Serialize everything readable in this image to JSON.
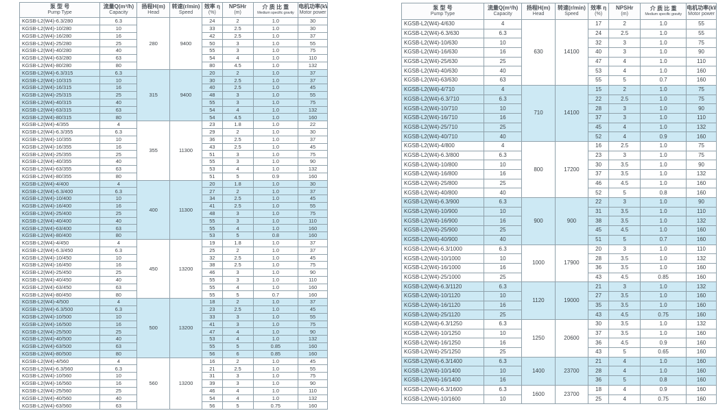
{
  "header": {
    "pump_type_zh": "泵 型 号",
    "pump_type_en": "Pump Type",
    "capacity_zh": "流量Q(m³/h)",
    "capacity_en": "Capacity",
    "head_zh": "扬程H(m)",
    "head_en": "Head",
    "speed_zh": "转速(r/min)",
    "speed_en": "Speed",
    "eff_zh": "效率 η",
    "eff_en": "(%)",
    "npshr_zh": "NPSHr",
    "npshr_en": "(m)",
    "gravity_zh": "介 质 比 重",
    "gravity_en": "Medium specific gravity",
    "power_zh": "电机功率(kW)",
    "power_en": "Motor power"
  },
  "colors": {
    "highlight": "#cde9f4",
    "border": "#8fa0aa",
    "text": "#3c4146"
  },
  "row_columns": [
    "model",
    "capacity",
    "efficiency",
    "npshr",
    "gravity",
    "power"
  ],
  "tables": [
    {
      "groups": [
        {
          "head": "280",
          "speed": "9400",
          "highlight": false,
          "rows": [
            [
              "KGSB-L2(W4)-6.3/280",
              "6.3",
              "24",
              "2",
              "1.0",
              "30"
            ],
            [
              "KGSB-L2(W4)-10/280",
              "10",
              "33",
              "2.5",
              "1.0",
              "30"
            ],
            [
              "KGSB-L2(W4)-16/280",
              "16",
              "42",
              "2.5",
              "1.0",
              "37"
            ],
            [
              "KGSB-L2(W4)-25/280",
              "25",
              "50",
              "3",
              "1.0",
              "55"
            ],
            [
              "KGSB-L2(W4)-40/280",
              "40",
              "55",
              "3",
              "1.0",
              "75"
            ],
            [
              "KGSB-L2(W4)-63/280",
              "63",
              "54",
              "4",
              "1.0",
              "110"
            ],
            [
              "KGSB-L2(W4)-80/280",
              "80",
              "80",
              "4.5",
              "1.0",
              "132"
            ]
          ]
        },
        {
          "head": "315",
          "speed": "9400",
          "highlight": true,
          "rows": [
            [
              "KGSB-L2(W4)-6.3/315",
              "6.3",
              "20",
              "2",
              "1.0",
              "37"
            ],
            [
              "KGSB-L2(W4)-10/315",
              "10",
              "30",
              "2.5",
              "1.0",
              "37"
            ],
            [
              "KGSB-L2(W4)-16/315",
              "16",
              "40",
              "2.5",
              "1.0",
              "45"
            ],
            [
              "KGSB-L2(W4)-25/315",
              "25",
              "48",
              "3",
              "1.0",
              "55"
            ],
            [
              "KGSB-L2(W4)-40/315",
              "40",
              "55",
              "3",
              "1.0",
              "75"
            ],
            [
              "KGSB-L2(W4)-63/315",
              "63",
              "54",
              "4",
              "1.0",
              "132"
            ],
            [
              "KGSB-L2(W4)-80/315",
              "80",
              "54",
              "4.5",
              "1.0",
              "160"
            ]
          ]
        },
        {
          "head": "355",
          "speed": "11300",
          "highlight": false,
          "rows": [
            [
              "KGSB-L2(W4)-4/355",
              "4",
              "23",
              "1.8",
              "1.0",
              "22"
            ],
            [
              "KGSB-L2(W4)-6.3/355",
              "6.3",
              "29",
              "2",
              "1.0",
              "30"
            ],
            [
              "KGSB-L2(W4)-10/355",
              "10",
              "36",
              "2.5",
              "1.0",
              "37"
            ],
            [
              "KGSB-L2(W4)-16/355",
              "16",
              "43",
              "2.5",
              "1.0",
              "45"
            ],
            [
              "KGSB-L2(W4)-25/355",
              "25",
              "51",
              "3",
              "1.0",
              "75"
            ],
            [
              "KGSB-L2(W4)-40/355",
              "40",
              "55",
              "3",
              "1.0",
              "90"
            ],
            [
              "KGSB-L2(W4)-63/355",
              "63",
              "53",
              "4",
              "1.0",
              "132"
            ],
            [
              "KGSB-L2(W4)-80/355",
              "80",
              "51",
              "5",
              "0.9",
              "160"
            ]
          ]
        },
        {
          "head": "400",
          "speed": "11300",
          "highlight": true,
          "rows": [
            [
              "KGSB-L2(W4)-4/400",
              "4",
              "20",
              "1.8",
              "1.0",
              "30"
            ],
            [
              "KGSB-L2(W4)-6.3/400",
              "6.3",
              "27",
              "2",
              "1.0",
              "37"
            ],
            [
              "KGSB-L2(W4)-10/400",
              "10",
              "34",
              "2.5",
              "1.0",
              "45"
            ],
            [
              "KGSB-L2(W4)-16/400",
              "16",
              "41",
              "2.5",
              "1.0",
              "55"
            ],
            [
              "KGSB-L2(W4)-25/400",
              "25",
              "48",
              "3",
              "1.0",
              "75"
            ],
            [
              "KGSB-L2(W4)-40/400",
              "40",
              "55",
              "3",
              "1.0",
              "110"
            ],
            [
              "KGSB-L2(W4)-63/400",
              "63",
              "55",
              "4",
              "1.0",
              "160"
            ],
            [
              "KGSB-L2(W4)-80/400",
              "80",
              "53",
              "5",
              "0.8",
              "160"
            ]
          ]
        },
        {
          "head": "450",
          "speed": "13200",
          "highlight": false,
          "rows": [
            [
              "KGSB-L2(W4)-4/450",
              "4",
              "19",
              "1.8",
              "1.0",
              "37"
            ],
            [
              "KGSB-L2(W4)-6.3/450",
              "6.3",
              "25",
              "2",
              "1.0",
              "37"
            ],
            [
              "KGSB-L2(W4)-10/450",
              "10",
              "32",
              "2.5",
              "1.0",
              "45"
            ],
            [
              "KGSB-L2(W4)-16/450",
              "16",
              "38",
              "2.5",
              "1.0",
              "75"
            ],
            [
              "KGSB-L2(W4)-25/450",
              "25",
              "46",
              "3",
              "1.0",
              "90"
            ],
            [
              "KGSB-L2(W4)-40/450",
              "40",
              "55",
              "3",
              "1.0",
              "110"
            ],
            [
              "KGSB-L2(W4)-63/450",
              "63",
              "55",
              "4",
              "1.0",
              "160"
            ],
            [
              "KGSB-L2(W4)-80/450",
              "80",
              "55",
              "5",
              "0.7",
              "160"
            ]
          ]
        },
        {
          "head": "500",
          "speed": "13200",
          "highlight": true,
          "rows": [
            [
              "KGSB-L2(W4)-4/500",
              "4",
              "18",
              "2",
              "1.0",
              "37"
            ],
            [
              "KGSB-L2(W4)-6.3/500",
              "6.3",
              "23",
              "2.5",
              "1.0",
              "45"
            ],
            [
              "KGSB-L2(W4)-10/500",
              "10",
              "33",
              "3",
              "1.0",
              "55"
            ],
            [
              "KGSB-L2(W4)-16/500",
              "16",
              "41",
              "3",
              "1.0",
              "75"
            ],
            [
              "KGSB-L2(W4)-25/500",
              "25",
              "47",
              "4",
              "1.0",
              "90"
            ],
            [
              "KGSB-L2(W4)-40/500",
              "40",
              "53",
              "4",
              "1.0",
              "132"
            ],
            [
              "KGSB-L2(W4)-63/500",
              "63",
              "55",
              "5",
              "0.85",
              "160"
            ],
            [
              "KGSB-L2(W4)-80/500",
              "80",
              "56",
              "6",
              "0.85",
              "160"
            ]
          ]
        },
        {
          "head": "560",
          "speed": "13200",
          "highlight": false,
          "rows": [
            [
              "KGSB-L2(W4)-4/560",
              "4",
              "16",
              "2",
              "1.0",
              "45"
            ],
            [
              "KGSB-L2(W4)-6.3/560",
              "6.3",
              "21",
              "2.5",
              "1.0",
              "55"
            ],
            [
              "KGSB-L2(W4)-10/560",
              "10",
              "31",
              "3",
              "1.0",
              "75"
            ],
            [
              "KGSB-L2(W4)-16/560",
              "16",
              "39",
              "3",
              "1.0",
              "90"
            ],
            [
              "KGSB-L2(W4)-25/560",
              "25",
              "46",
              "4",
              "1.0",
              "110"
            ],
            [
              "KGSB-L2(W4)-40/560",
              "40",
              "54",
              "4",
              "1.0",
              "132"
            ],
            [
              "KGSB-L2(W4)-63/560",
              "63",
              "56",
              "5",
              "0.75",
              "160"
            ]
          ]
        }
      ]
    },
    {
      "groups": [
        {
          "head": "630",
          "speed": "14100",
          "highlight": false,
          "rows": [
            [
              "KGSB-L2(W4)-4/630",
              "4",
              "17",
              "2",
              "1.0",
              "55"
            ],
            [
              "KGSB-L2(W4)-6.3/630",
              "6.3",
              "24",
              "2.5",
              "1.0",
              "55"
            ],
            [
              "KGSB-L2(W4)-10/630",
              "10",
              "32",
              "3",
              "1.0",
              "75"
            ],
            [
              "KGSB-L2(W4)-16/630",
              "16",
              "40",
              "3",
              "1.0",
              "90"
            ],
            [
              "KGSB-L2(W4)-25/630",
              "25",
              "47",
              "4",
              "1.0",
              "110"
            ],
            [
              "KGSB-L2(W4)-40/630",
              "40",
              "53",
              "4",
              "1.0",
              "160"
            ],
            [
              "KGSB-L2(W4)-63/630",
              "63",
              "55",
              "5",
              "0.7",
              "160"
            ]
          ]
        },
        {
          "head": "710",
          "speed": "14100",
          "highlight": true,
          "rows": [
            [
              "KGSB-L2(W4)-4/710",
              "4",
              "15",
              "2",
              "1.0",
              "75"
            ],
            [
              "KGSB-L2(W4)-6.3/710",
              "6.3",
              "22",
              "2.5",
              "1.0",
              "75"
            ],
            [
              "KGSB-L2(W4)-10/710",
              "10",
              "28",
              "3",
              "1.0",
              "90"
            ],
            [
              "KGSB-L2(W4)-16/710",
              "16",
              "37",
              "3",
              "1.0",
              "110"
            ],
            [
              "KGSB-L2(W4)-25/710",
              "25",
              "45",
              "4",
              "1.0",
              "132"
            ],
            [
              "KGSB-L2(W4)-40/710",
              "40",
              "52",
              "4",
              "0.9",
              "160"
            ]
          ]
        },
        {
          "head": "800",
          "speed": "17200",
          "highlight": false,
          "rows": [
            [
              "KGSB-L2(W4)-4/800",
              "4",
              "16",
              "2.5",
              "1.0",
              "75"
            ],
            [
              "KGSB-L2(W4)-6.3/800",
              "6.3",
              "23",
              "3",
              "1.0",
              "75"
            ],
            [
              "KGSB-L2(W4)-10/800",
              "10",
              "30",
              "3.5",
              "1.0",
              "90"
            ],
            [
              "KGSB-L2(W4)-16/800",
              "16",
              "37",
              "3.5",
              "1.0",
              "132"
            ],
            [
              "KGSB-L2(W4)-25/800",
              "25",
              "46",
              "4.5",
              "1.0",
              "160"
            ],
            [
              "KGSB-L2(W4)-40/800",
              "40",
              "52",
              "5",
              "0.8",
              "160"
            ]
          ]
        },
        {
          "head": "900",
          "speed": "900",
          "highlight": true,
          "rows": [
            [
              "KGSB-L2(W4)-6.3/900",
              "6.3",
              "22",
              "3",
              "1.0",
              "90"
            ],
            [
              "KGSB-L2(W4)-10/900",
              "10",
              "31",
              "3.5",
              "1.0",
              "110"
            ],
            [
              "KGSB-L2(W4)-16/900",
              "16",
              "38",
              "3.5",
              "1.0",
              "132"
            ],
            [
              "KGSB-L2(W4)-25/900",
              "25",
              "45",
              "4.5",
              "1.0",
              "160"
            ],
            [
              "KGSB-L2(W4)-40/900",
              "40",
              "51",
              "5",
              "0.7",
              "160"
            ]
          ]
        },
        {
          "head": "1000",
          "speed": "17900",
          "highlight": false,
          "rows": [
            [
              "KGSB-L2(W4)-6.3/1000",
              "6.3",
              "20",
              "3",
              "1.0",
              "110"
            ],
            [
              "KGSB-L2(W4)-10/1000",
              "10",
              "28",
              "3.5",
              "1.0",
              "132"
            ],
            [
              "KGSB-L2(W4)-16/1000",
              "16",
              "36",
              "3.5",
              "1.0",
              "160"
            ],
            [
              "KGSB-L2(W4)-25/1000",
              "25",
              "43",
              "4.5",
              "0.85",
              "160"
            ]
          ]
        },
        {
          "head": "1120",
          "speed": "19000",
          "highlight": true,
          "rows": [
            [
              "KGSB-L2(W4)-6.3/1120",
              "6.3",
              "21",
              "3",
              "1.0",
              "132"
            ],
            [
              "KGSB-L2(W4)-10/1120",
              "10",
              "27",
              "3.5",
              "1.0",
              "160"
            ],
            [
              "KGSB-L2(W4)-16/1120",
              "16",
              "35",
              "3.5",
              "1.0",
              "160"
            ],
            [
              "KGSB-L2(W4)-25/1120",
              "25",
              "43",
              "4.5",
              "0.75",
              "160"
            ]
          ]
        },
        {
          "head": "1250",
          "speed": "20600",
          "highlight": false,
          "rows": [
            [
              "KGSB-L2(W4)-6.3/1250",
              "6.3",
              "30",
              "3.5",
              "1.0",
              "132"
            ],
            [
              "KGSB-L2(W4)-10/1250",
              "10",
              "37",
              "3.5",
              "1.0",
              "160"
            ],
            [
              "KGSB-L2(W4)-16/1250",
              "16",
              "36",
              "4.5",
              "0.9",
              "160"
            ],
            [
              "KGSB-L2(W4)-25/1250",
              "25",
              "43",
              "5",
              "0.65",
              "160"
            ]
          ]
        },
        {
          "head": "1400",
          "speed": "23700",
          "highlight": true,
          "rows": [
            [
              "KGSB-L2(W4)-6.3/1400",
              "6.3",
              "21",
              "4",
              "1.0",
              "160"
            ],
            [
              "KGSB-L2(W4)-10/1400",
              "10",
              "28",
              "4",
              "1.0",
              "160"
            ],
            [
              "KGSB-L2(W4)-16/1400",
              "16",
              "36",
              "5",
              "0.8",
              "160"
            ]
          ]
        },
        {
          "head": "1600",
          "speed": "23700",
          "highlight": false,
          "rows": [
            [
              "KGSB-L2(W4)-6.3/1600",
              "6.3",
              "18",
              "4",
              "0.9",
              "160"
            ],
            [
              "KGSB-L2(W4)-10/1600",
              "10",
              "25",
              "4",
              "0.75",
              "160"
            ]
          ]
        }
      ]
    }
  ]
}
